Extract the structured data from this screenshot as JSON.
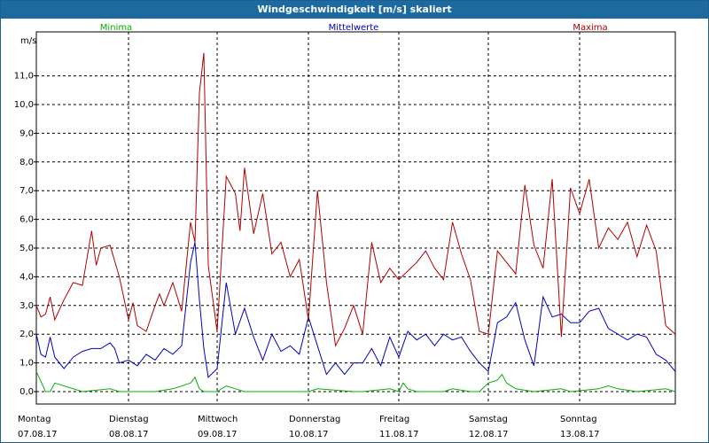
{
  "window": {
    "title": "Windgeschwindigkeit [m/s] skaliert"
  },
  "chart_data": {
    "type": "line",
    "title": "Windgeschwindigkeit [m/s] skaliert",
    "ylabel": "m/s",
    "ylim": [
      0,
      12
    ],
    "yticks": [
      "0,0",
      "1,0",
      "2,0",
      "3,0",
      "4,0",
      "5,0",
      "6,0",
      "7,0",
      "8,0",
      "9,0",
      "10,0",
      "11,0"
    ],
    "xlim": [
      0,
      7
    ],
    "grid": true,
    "legend_position": "top",
    "days": [
      {
        "day": "Montag",
        "date": "07.08.17"
      },
      {
        "day": "Dienstag",
        "date": "08.08.17"
      },
      {
        "day": "Mittwoch",
        "date": "09.08.17"
      },
      {
        "day": "Donnerstag",
        "date": "10.08.17"
      },
      {
        "day": "Freitag",
        "date": "11.08.17"
      },
      {
        "day": "Samstag",
        "date": "12.08.17"
      },
      {
        "day": "Sonntag",
        "date": "13.08.17"
      }
    ],
    "series": [
      {
        "name": "Minima",
        "color": "#00b000",
        "x": [
          0,
          0.1,
          0.15,
          0.2,
          0.5,
          0.8,
          0.9,
          1.0,
          1.3,
          1.5,
          1.7,
          1.75,
          1.8,
          1.85,
          1.9,
          2.0,
          2.1,
          2.2,
          2.3,
          2.5,
          3.0,
          3.1,
          3.5,
          3.6,
          3.9,
          4.0,
          4.05,
          4.1,
          4.2,
          4.5,
          4.6,
          4.8,
          4.9,
          5.0,
          5.1,
          5.15,
          5.2,
          5.3,
          5.5,
          5.8,
          5.9,
          6.2,
          6.3,
          6.4,
          6.6,
          6.9,
          7.0
        ],
        "y": [
          0.7,
          0.0,
          0.0,
          0.3,
          0.0,
          0.1,
          0.0,
          0.0,
          0.0,
          0.1,
          0.3,
          0.5,
          0.1,
          0.0,
          0.0,
          0.0,
          0.2,
          0.1,
          0.0,
          0.0,
          0.0,
          0.1,
          0.0,
          0.0,
          0.1,
          0.0,
          0.3,
          0.1,
          0.0,
          0.0,
          0.1,
          0.0,
          0.0,
          0.3,
          0.4,
          0.6,
          0.3,
          0.1,
          0.0,
          0.1,
          0.0,
          0.1,
          0.2,
          0.1,
          0.0,
          0.1,
          0.0
        ]
      },
      {
        "name": "Mittelwerte",
        "color": "#0000c0",
        "x": [
          0,
          0.05,
          0.1,
          0.15,
          0.2,
          0.3,
          0.4,
          0.5,
          0.6,
          0.7,
          0.8,
          0.85,
          0.9,
          1.0,
          1.1,
          1.2,
          1.3,
          1.4,
          1.5,
          1.6,
          1.7,
          1.75,
          1.8,
          1.85,
          1.9,
          2.0,
          2.1,
          2.2,
          2.3,
          2.4,
          2.5,
          2.6,
          2.7,
          2.8,
          2.9,
          3.0,
          3.1,
          3.2,
          3.3,
          3.4,
          3.5,
          3.6,
          3.7,
          3.8,
          3.9,
          4.0,
          4.1,
          4.2,
          4.3,
          4.4,
          4.5,
          4.6,
          4.7,
          4.8,
          4.9,
          5.0,
          5.1,
          5.2,
          5.3,
          5.4,
          5.5,
          5.6,
          5.7,
          5.8,
          5.9,
          6.0,
          6.1,
          6.2,
          6.3,
          6.4,
          6.5,
          6.6,
          6.7,
          6.8,
          6.9,
          7.0
        ],
        "y": [
          2.0,
          1.3,
          1.2,
          1.9,
          1.2,
          0.8,
          1.2,
          1.4,
          1.5,
          1.5,
          1.7,
          1.5,
          1.0,
          1.1,
          0.9,
          1.3,
          1.1,
          1.5,
          1.3,
          1.6,
          4.5,
          5.2,
          3.2,
          1.5,
          0.5,
          0.8,
          3.8,
          2.0,
          2.9,
          1.9,
          1.1,
          2.0,
          1.4,
          1.6,
          1.3,
          2.6,
          1.6,
          0.6,
          1.0,
          0.6,
          1.0,
          1.0,
          1.5,
          0.9,
          1.9,
          1.2,
          2.1,
          1.8,
          2.0,
          1.6,
          2.0,
          1.8,
          1.9,
          1.4,
          1.0,
          0.7,
          2.4,
          2.6,
          3.1,
          1.8,
          0.9,
          3.3,
          2.6,
          2.7,
          2.4,
          2.4,
          2.8,
          2.9,
          2.2,
          2.0,
          1.8,
          2.0,
          1.9,
          1.3,
          1.1,
          0.7
        ]
      },
      {
        "name": "Maxima",
        "color": "#b00000",
        "x": [
          0,
          0.05,
          0.1,
          0.15,
          0.2,
          0.3,
          0.4,
          0.5,
          0.6,
          0.65,
          0.7,
          0.8,
          0.9,
          1.0,
          1.05,
          1.1,
          1.2,
          1.3,
          1.35,
          1.4,
          1.5,
          1.6,
          1.7,
          1.75,
          1.8,
          1.85,
          1.9,
          2.0,
          2.1,
          2.2,
          2.25,
          2.3,
          2.4,
          2.5,
          2.6,
          2.7,
          2.8,
          2.9,
          3.0,
          3.1,
          3.2,
          3.3,
          3.4,
          3.5,
          3.6,
          3.7,
          3.8,
          3.9,
          4.0,
          4.1,
          4.2,
          4.3,
          4.4,
          4.5,
          4.6,
          4.7,
          4.8,
          4.9,
          5.0,
          5.1,
          5.2,
          5.3,
          5.4,
          5.5,
          5.6,
          5.7,
          5.8,
          5.9,
          6.0,
          6.1,
          6.2,
          6.3,
          6.4,
          6.5,
          6.6,
          6.7,
          6.8,
          6.9,
          7.0
        ],
        "y": [
          3.0,
          2.6,
          2.7,
          3.3,
          2.5,
          3.2,
          3.8,
          3.7,
          5.6,
          4.4,
          5.0,
          5.1,
          4.0,
          2.5,
          3.1,
          2.3,
          2.1,
          3.0,
          3.4,
          3.0,
          3.8,
          2.8,
          5.9,
          5.2,
          10.4,
          11.8,
          4.4,
          2.1,
          7.5,
          6.9,
          5.6,
          7.8,
          5.5,
          6.9,
          4.8,
          5.2,
          4.0,
          4.6,
          2.5,
          7.0,
          3.8,
          1.6,
          2.2,
          3.0,
          2.0,
          5.2,
          3.8,
          4.3,
          3.9,
          4.2,
          4.5,
          4.9,
          4.3,
          3.9,
          5.9,
          4.8,
          3.9,
          2.1,
          2.0,
          4.9,
          4.5,
          4.1,
          7.2,
          5.1,
          4.3,
          7.4,
          1.9,
          7.1,
          6.2,
          7.4,
          5.0,
          5.7,
          5.3,
          5.9,
          4.7,
          5.8,
          4.9,
          2.3,
          2.0
        ]
      }
    ]
  }
}
